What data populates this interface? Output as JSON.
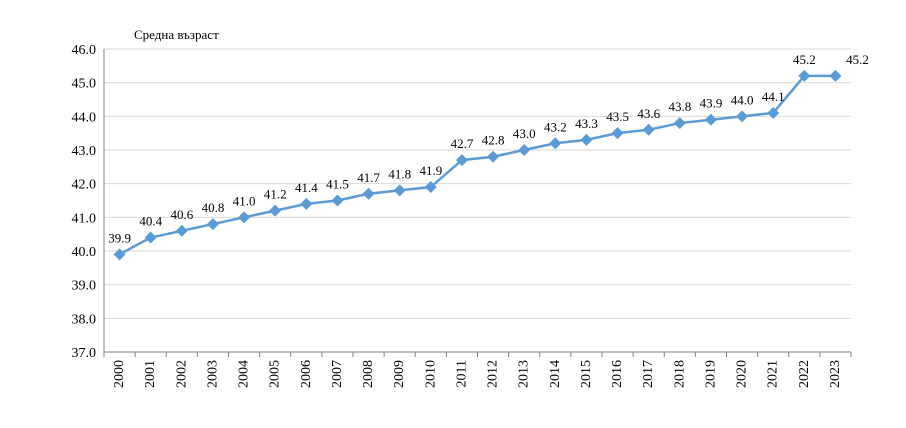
{
  "chart_data": {
    "type": "line",
    "title": "",
    "xlabel": "",
    "ylabel": "Средна възраст",
    "ylim": [
      37.0,
      46.0
    ],
    "y_ticks": [
      "37.0",
      "38.0",
      "39.0",
      "40.0",
      "41.0",
      "42.0",
      "43.0",
      "44.0",
      "45.0",
      "46.0"
    ],
    "grid": true,
    "legend": "none",
    "categories": [
      "2000",
      "2001",
      "2002",
      "2003",
      "2004",
      "2005",
      "2006",
      "2007",
      "2008",
      "2009",
      "2010",
      "2011",
      "2012",
      "2013",
      "2014",
      "2015",
      "2016",
      "2017",
      "2018",
      "2019",
      "2020",
      "2021",
      "2022",
      "2023"
    ],
    "series": [
      {
        "values": [
          39.9,
          40.4,
          40.6,
          40.8,
          41.0,
          41.2,
          41.4,
          41.5,
          41.7,
          41.8,
          41.9,
          42.7,
          42.8,
          43.0,
          43.2,
          43.3,
          43.5,
          43.6,
          43.8,
          43.9,
          44.0,
          44.1,
          45.2,
          45.2
        ],
        "data_labels": [
          "39.9",
          "40.4",
          "40.6",
          "40.8",
          "41.0",
          "41.2",
          "41.4",
          "41.5",
          "41.7",
          "41.8",
          "41.9",
          "42.7",
          "42.8",
          "43.0",
          "43.2",
          "43.3",
          "43.5",
          "43.6",
          "43.8",
          "43.9",
          "44.0",
          "44.1",
          "45.2",
          "45.2"
        ],
        "color": "#5b9bd5",
        "marker": "diamond"
      }
    ]
  }
}
